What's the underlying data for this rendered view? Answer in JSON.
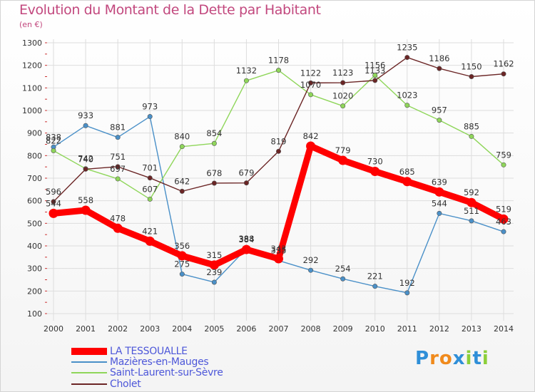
{
  "chart_data": {
    "type": "line",
    "title": "Evolution du Montant de la Dette par Habitant",
    "ylabel": "(en €)",
    "categories": [
      "2000",
      "2001",
      "2002",
      "2003",
      "2004",
      "2005",
      "2006",
      "2007",
      "2008",
      "2009",
      "2010",
      "2011",
      "2012",
      "2013",
      "2014"
    ],
    "ylim": [
      100,
      1300
    ],
    "yticks": [
      100,
      200,
      300,
      400,
      500,
      600,
      700,
      800,
      900,
      1000,
      1100,
      1200,
      1300
    ],
    "grid": true,
    "legend_position": "bottom-left",
    "series": [
      {
        "name": "LA TESSOUALLE",
        "color": "#ff0000",
        "values": [
          544,
          558,
          478,
          421,
          356,
          315,
          384,
          343,
          842,
          779,
          730,
          685,
          639,
          592,
          519
        ]
      },
      {
        "name": "Mazières-en-Mauges",
        "color": "#4a90c8",
        "values": [
          838,
          933,
          881,
          973,
          275,
          239,
          388,
          335,
          292,
          254,
          221,
          192,
          544,
          511,
          463
        ]
      },
      {
        "name": "Saint-Laurent-sur-Sèvre",
        "color": "#8fd65a",
        "values": [
          822,
          742,
          697,
          607,
          840,
          854,
          1132,
          1178,
          1070,
          1020,
          1156,
          1023,
          957,
          885,
          759
        ]
      },
      {
        "name": "Cholet",
        "color": "#6b2525",
        "values": [
          596,
          740,
          751,
          701,
          642,
          678,
          679,
          819,
          1122,
          1123,
          1133,
          1235,
          1186,
          1150,
          1162
        ]
      }
    ]
  },
  "logo": {
    "text": "Proxiti",
    "letters": [
      "P",
      "r",
      "o",
      "x",
      "i",
      "t",
      "i"
    ],
    "colors": [
      "#2f8fd8",
      "#f08a1c",
      "#f08a1c",
      "#2f8fd8",
      "#8ccf3a",
      "#2f8fd8",
      "#8ccf3a"
    ]
  }
}
